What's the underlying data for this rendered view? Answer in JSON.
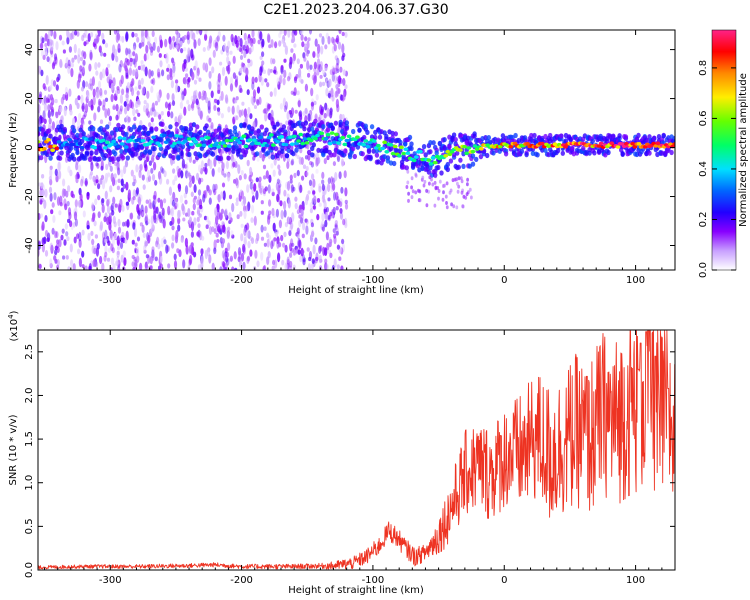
{
  "title": "C2E1.2023.204.06.37.G30",
  "colors": {
    "signal_line": "#ee3322",
    "spectrogram_low": "#e8d8ff",
    "spectrogram_high": "#5500dd"
  },
  "chart_data": [
    {
      "type": "heatmap",
      "xlabel": "Height of straight line (km)",
      "ylabel": "Frequency (Hz)",
      "xlim": [
        -355,
        130
      ],
      "ylim": [
        -50,
        48
      ],
      "xticks": [
        -300,
        -200,
        -100,
        0,
        100
      ],
      "yticks": [
        -40,
        -20,
        0,
        20,
        40
      ],
      "grid": false,
      "colorbar": {
        "label": "Normalized spectral amplitude",
        "range": [
          0.0,
          0.95
        ],
        "ticks": [
          "0.0",
          "0.2",
          "0.4",
          "0.6",
          "0.8"
        ],
        "colormap": [
          "#ffffff",
          "#c8a0ff",
          "#8800ff",
          "#2200ff",
          "#0066ff",
          "#00e0ff",
          "#00ff66",
          "#66ff00",
          "#ffee00",
          "#ff8800",
          "#ff0000",
          "#ff2288"
        ]
      },
      "noise_band": {
        "x_from": -355,
        "x_to": -120,
        "level": 0.12
      },
      "ridge": [
        {
          "x": -340,
          "f": 2,
          "amp": 0.35
        },
        {
          "x": -300,
          "f": 2,
          "amp": 0.42
        },
        {
          "x": -260,
          "f": 3,
          "amp": 0.4
        },
        {
          "x": -220,
          "f": 2,
          "amp": 0.5
        },
        {
          "x": -180,
          "f": 3,
          "amp": 0.45
        },
        {
          "x": -140,
          "f": 4,
          "amp": 0.5
        },
        {
          "x": -110,
          "f": 3,
          "amp": 0.5
        },
        {
          "x": -90,
          "f": 0,
          "amp": 0.55
        },
        {
          "x": -70,
          "f": -3,
          "amp": 0.55
        },
        {
          "x": -55,
          "f": -5,
          "amp": 0.55
        },
        {
          "x": -40,
          "f": -2,
          "amp": 0.6
        },
        {
          "x": -20,
          "f": 0,
          "amp": 0.65
        },
        {
          "x": 0,
          "f": 1,
          "amp": 0.75
        },
        {
          "x": 40,
          "f": 1,
          "amp": 0.8
        },
        {
          "x": 80,
          "f": 1,
          "amp": 0.85
        },
        {
          "x": 110,
          "f": 1,
          "amp": 0.85
        },
        {
          "x": 130,
          "f": 1,
          "amp": 0.8
        }
      ]
    },
    {
      "type": "line",
      "xlabel": "Height of straight line (km)",
      "ylabel": "SNR (10 * v/v)",
      "multiplier_label": "(x10",
      "multiplier_exponent": "4",
      "multiplier_close": ")",
      "xlim": [
        -355,
        130
      ],
      "ylim": [
        0,
        2.75
      ],
      "xticks": [
        -300,
        -200,
        -100,
        0,
        100
      ],
      "yticks": [
        "0.0",
        "0.5",
        "1.0",
        "1.5",
        "2.0",
        "2.5"
      ],
      "grid": false,
      "series": [
        {
          "points": [
            [
              -355,
              0.03
            ],
            [
              -320,
              0.04
            ],
            [
              -280,
              0.04
            ],
            [
              -240,
              0.05
            ],
            [
              -220,
              0.06
            ],
            [
              -200,
              0.04
            ],
            [
              -160,
              0.04
            ],
            [
              -130,
              0.05
            ],
            [
              -115,
              0.08
            ],
            [
              -105,
              0.15
            ],
            [
              -95,
              0.28
            ],
            [
              -88,
              0.45
            ],
            [
              -82,
              0.38
            ],
            [
              -75,
              0.25
            ],
            [
              -68,
              0.15
            ],
            [
              -60,
              0.2
            ],
            [
              -52,
              0.35
            ],
            [
              -45,
              0.55
            ],
            [
              -38,
              0.8
            ],
            [
              -30,
              1.1
            ],
            [
              -20,
              1.2
            ],
            [
              -10,
              1.1
            ],
            [
              0,
              1.3
            ],
            [
              15,
              1.35
            ],
            [
              25,
              1.55
            ],
            [
              35,
              1.3
            ],
            [
              45,
              1.45
            ],
            [
              55,
              1.6
            ],
            [
              65,
              1.5
            ],
            [
              75,
              1.8
            ],
            [
              85,
              1.7
            ],
            [
              95,
              1.85
            ],
            [
              105,
              2.0
            ],
            [
              112,
              2.2
            ],
            [
              118,
              1.7
            ],
            [
              124,
              1.9
            ],
            [
              130,
              1.5
            ]
          ],
          "spread": [
            [
              -355,
              0.02
            ],
            [
              -140,
              0.03
            ],
            [
              -100,
              0.1
            ],
            [
              -85,
              0.12
            ],
            [
              -60,
              0.1
            ],
            [
              -30,
              0.5
            ],
            [
              0,
              0.6
            ],
            [
              30,
              0.8
            ],
            [
              60,
              0.9
            ],
            [
              90,
              1.0
            ],
            [
              110,
              1.2
            ],
            [
              130,
              1.0
            ]
          ],
          "peaks": [
            [
              63,
              2.22
            ],
            [
              102,
              2.3
            ],
            [
              104,
              2.6
            ],
            [
              108,
              2.73
            ],
            [
              115,
              2.45
            ],
            [
              125,
              2.08
            ]
          ]
        }
      ]
    }
  ]
}
